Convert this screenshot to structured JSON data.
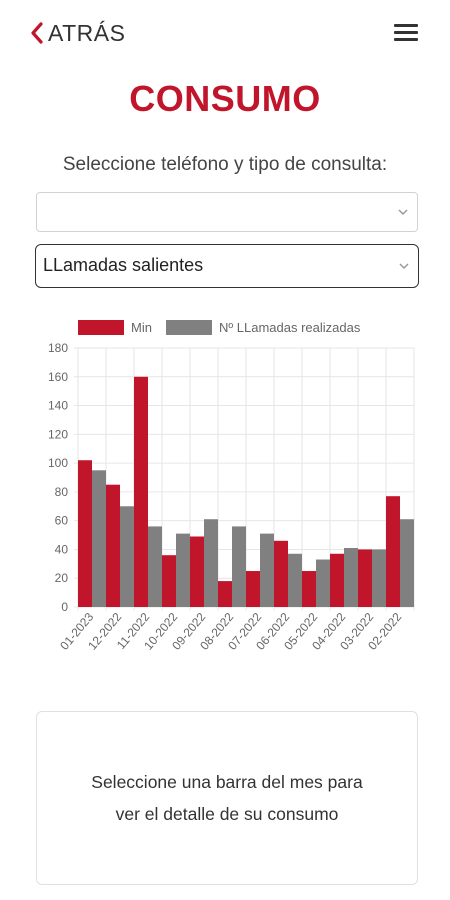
{
  "header": {
    "back_label": "ATRÁS",
    "back_icon": "chevron-left-icon",
    "menu_icon": "hamburger-menu-icon"
  },
  "page_title": "CONSUMO",
  "instruction": "Seleccione teléfono y tipo de consulta:",
  "phone_select": {
    "value": ""
  },
  "type_select": {
    "value": "LLamadas salientes"
  },
  "colors": {
    "accent": "#c0152a",
    "min": "#c0152a",
    "calls": "#808080"
  },
  "chart_data": {
    "type": "bar",
    "categories": [
      "01-2023",
      "12-2022",
      "11-2022",
      "10-2022",
      "09-2022",
      "08-2022",
      "07-2022",
      "06-2022",
      "05-2022",
      "04-2022",
      "03-2022",
      "02-2022"
    ],
    "series": [
      {
        "name": "Min",
        "color": "#c0152a",
        "values": [
          102,
          85,
          160,
          36,
          49,
          18,
          25,
          46,
          25,
          37,
          40,
          77
        ]
      },
      {
        "name": "Nº LLamadas realizadas",
        "color": "#808080",
        "values": [
          95,
          70,
          56,
          51,
          61,
          56,
          51,
          37,
          33,
          41,
          40,
          61
        ]
      }
    ],
    "ylim": [
      0,
      180
    ],
    "yticks": [
      0,
      20,
      40,
      60,
      80,
      100,
      120,
      140,
      160,
      180
    ],
    "grid": true,
    "legend": "top"
  },
  "detail_message": "Seleccione una barra del mes para ver el detalle de su consumo"
}
